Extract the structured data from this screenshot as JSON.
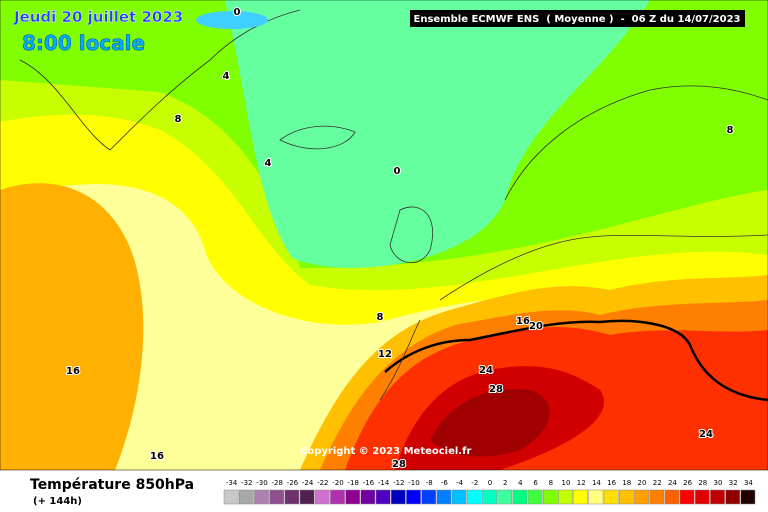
{
  "title": "Jeudi 20 juillet 2023",
  "subtitle": "8:00 locale",
  "header": "Ensemble ECMWF ENS  ( Moyenne )  -  06 Z du 14/07/2023",
  "copyright": "Copyright © 2023 Meteociel.fr",
  "legend": {
    "title": "Température 850hPa",
    "lead": "(+ 144h)"
  },
  "contour_labels": [
    0,
    4,
    8,
    4,
    0,
    8,
    8,
    12,
    16,
    16,
    16,
    20,
    24,
    28,
    24,
    28
  ],
  "colorbar": {
    "ticks": [
      -34,
      -32,
      -30,
      -28,
      -26,
      -24,
      -22,
      -20,
      -18,
      -16,
      -14,
      -12,
      -10,
      -8,
      -6,
      -4,
      -2,
      0,
      2,
      4,
      6,
      8,
      10,
      12,
      14,
      16,
      18,
      20,
      22,
      24,
      26,
      28,
      30,
      32,
      34
    ],
    "colors": [
      "#c8c8c8",
      "#a8a8a8",
      "#b080b0",
      "#905090",
      "#703070",
      "#502050",
      "#d070d0",
      "#b030b0",
      "#900090",
      "#7000a0",
      "#5000c0",
      "#0000c0",
      "#0000ff",
      "#0040ff",
      "#0080ff",
      "#00c0ff",
      "#00ffff",
      "#00ffc0",
      "#40ffa0",
      "#00ff80",
      "#40ff40",
      "#80ff00",
      "#c0ff00",
      "#ffff00",
      "#ffff80",
      "#ffe000",
      "#ffc000",
      "#ffa000",
      "#ff8000",
      "#ff6000",
      "#ff0000",
      "#e00000",
      "#c00000",
      "#900000",
      "#200000"
    ]
  }
}
